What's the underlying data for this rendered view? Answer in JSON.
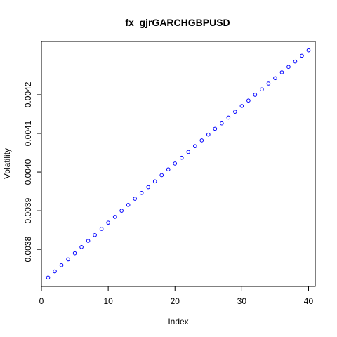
{
  "chart_data": {
    "type": "scatter",
    "title": "fx_gjrGARCHGBPUSD",
    "xlabel": "Index",
    "ylabel": "Volatility",
    "x": [
      1,
      2,
      3,
      4,
      5,
      6,
      7,
      8,
      9,
      10,
      11,
      12,
      13,
      14,
      15,
      16,
      17,
      18,
      19,
      20,
      21,
      22,
      23,
      24,
      25,
      26,
      27,
      28,
      29,
      30,
      31,
      32,
      33,
      34,
      35,
      36,
      37,
      38,
      39,
      40
    ],
    "y": [
      0.003727,
      0.003743,
      0.003759,
      0.003774,
      0.00379,
      0.003806,
      0.003822,
      0.003837,
      0.003853,
      0.003869,
      0.003884,
      0.0039,
      0.003915,
      0.003931,
      0.003946,
      0.003961,
      0.003976,
      0.003992,
      0.004007,
      0.004022,
      0.004037,
      0.004052,
      0.004067,
      0.004082,
      0.004097,
      0.004112,
      0.004126,
      0.004141,
      0.004156,
      0.004171,
      0.004185,
      0.0042,
      0.004214,
      0.004229,
      0.004243,
      0.004258,
      0.004272,
      0.004286,
      0.004301,
      0.004315
    ],
    "xlim": [
      0,
      41
    ],
    "ylim": [
      0.003704,
      0.004338
    ],
    "xticks": [
      0,
      10,
      20,
      30,
      40
    ],
    "xtick_labels": [
      "0",
      "10",
      "20",
      "30",
      "40"
    ],
    "yticks": [
      0.0038,
      0.0039,
      0.004,
      0.0041,
      0.0042
    ],
    "ytick_labels": [
      "0.0038",
      "0.0039",
      "0.0040",
      "0.0041",
      "0.0042"
    ],
    "point_color": "#0000ff",
    "grid": false,
    "legend": "none"
  }
}
